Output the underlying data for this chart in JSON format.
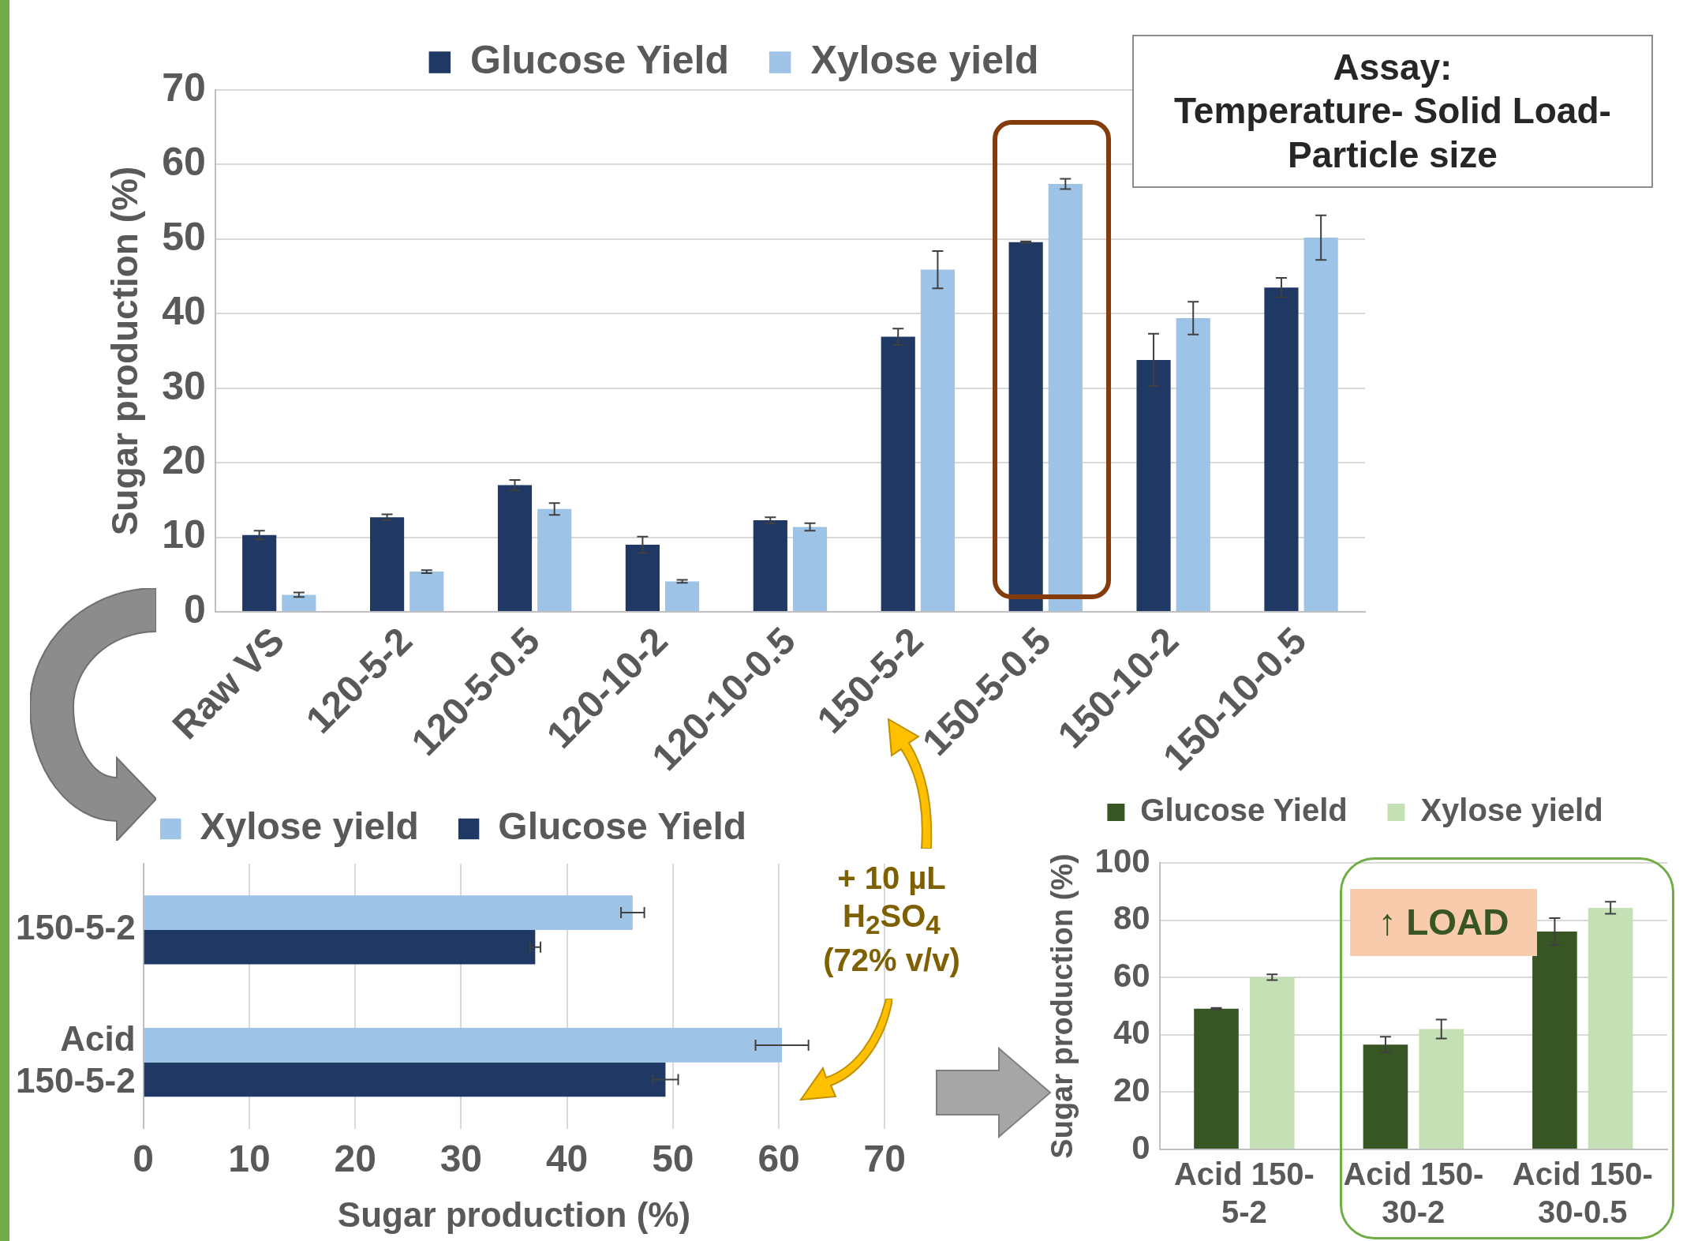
{
  "chart_data": [
    {
      "type": "bar",
      "ylabel": "Sugar production (%)",
      "categories": [
        "Raw VS",
        "120-5-2",
        "120-5-0.5",
        "120-10-2",
        "120-10-0.5",
        "150-5-2",
        "150-5-0.5",
        "150-10-2",
        "150-10-0.5"
      ],
      "series": [
        {
          "name": "Glucose Yield",
          "color": "#1f3864",
          "values": [
            10.3,
            12.7,
            17.0,
            9.0,
            12.3,
            36.9,
            49.6,
            33.8,
            43.5
          ],
          "errors": [
            0.6,
            0.4,
            0.7,
            1.1,
            0.4,
            1.1,
            0.1,
            3.5,
            1.3
          ]
        },
        {
          "name": "Xylose yield",
          "color": "#9dc3e6",
          "values": [
            2.3,
            5.4,
            13.8,
            4.1,
            11.4,
            45.9,
            57.4,
            39.4,
            50.2
          ],
          "errors": [
            0.3,
            0.2,
            0.8,
            0.2,
            0.5,
            2.5,
            0.7,
            2.2,
            3.0
          ]
        }
      ],
      "ylim": [
        0,
        70
      ],
      "yticks": [
        0,
        10,
        20,
        30,
        40,
        50,
        60,
        70
      ],
      "grid": "y",
      "legend": "top",
      "annotations": [
        "Assay:\nTemperature- Solid Load-\nParticle size"
      ]
    },
    {
      "type": "bar",
      "orientation": "horizontal",
      "xlabel": "Sugar production (%)",
      "categories": [
        "150-5-2",
        "Acid\n150-5-2"
      ],
      "series": [
        {
          "name": "Xylose yield",
          "color": "#9dc3e6",
          "values": [
            46.2,
            60.3
          ],
          "errors": [
            1.1,
            2.5
          ]
        },
        {
          "name": "Glucose Yield",
          "color": "#1f3864",
          "values": [
            37.0,
            49.3
          ],
          "errors": [
            0.5,
            1.2
          ]
        }
      ],
      "xlim": [
        0,
        70
      ],
      "xticks": [
        0,
        10,
        20,
        30,
        40,
        50,
        60,
        70
      ],
      "grid": "x",
      "legend": "top",
      "annotations": [
        "+ 10 µL H$_{2}$SO$_{4}$ (72% v/v)"
      ]
    },
    {
      "type": "bar",
      "ylabel": "Sugar production (%)",
      "categories": [
        "Acid 150-\n5-2",
        "Acid 150-\n30-2",
        "Acid 150-\n30-0.5"
      ],
      "series": [
        {
          "name": "Glucose Yield",
          "color": "#375623",
          "values": [
            49.1,
            36.6,
            76.0
          ],
          "errors": [
            0.3,
            2.7,
            4.7
          ]
        },
        {
          "name": "Xylose yield",
          "color": "#c5e0b4",
          "values": [
            60.1,
            42.0,
            84.3
          ],
          "errors": [
            1.0,
            3.3,
            2.1
          ]
        }
      ],
      "ylim": [
        0,
        100
      ],
      "yticks": [
        0,
        20,
        40,
        60,
        80,
        100
      ],
      "grid": "y",
      "legend": "top",
      "annotations": [
        "↑ LOAD"
      ]
    }
  ]
}
